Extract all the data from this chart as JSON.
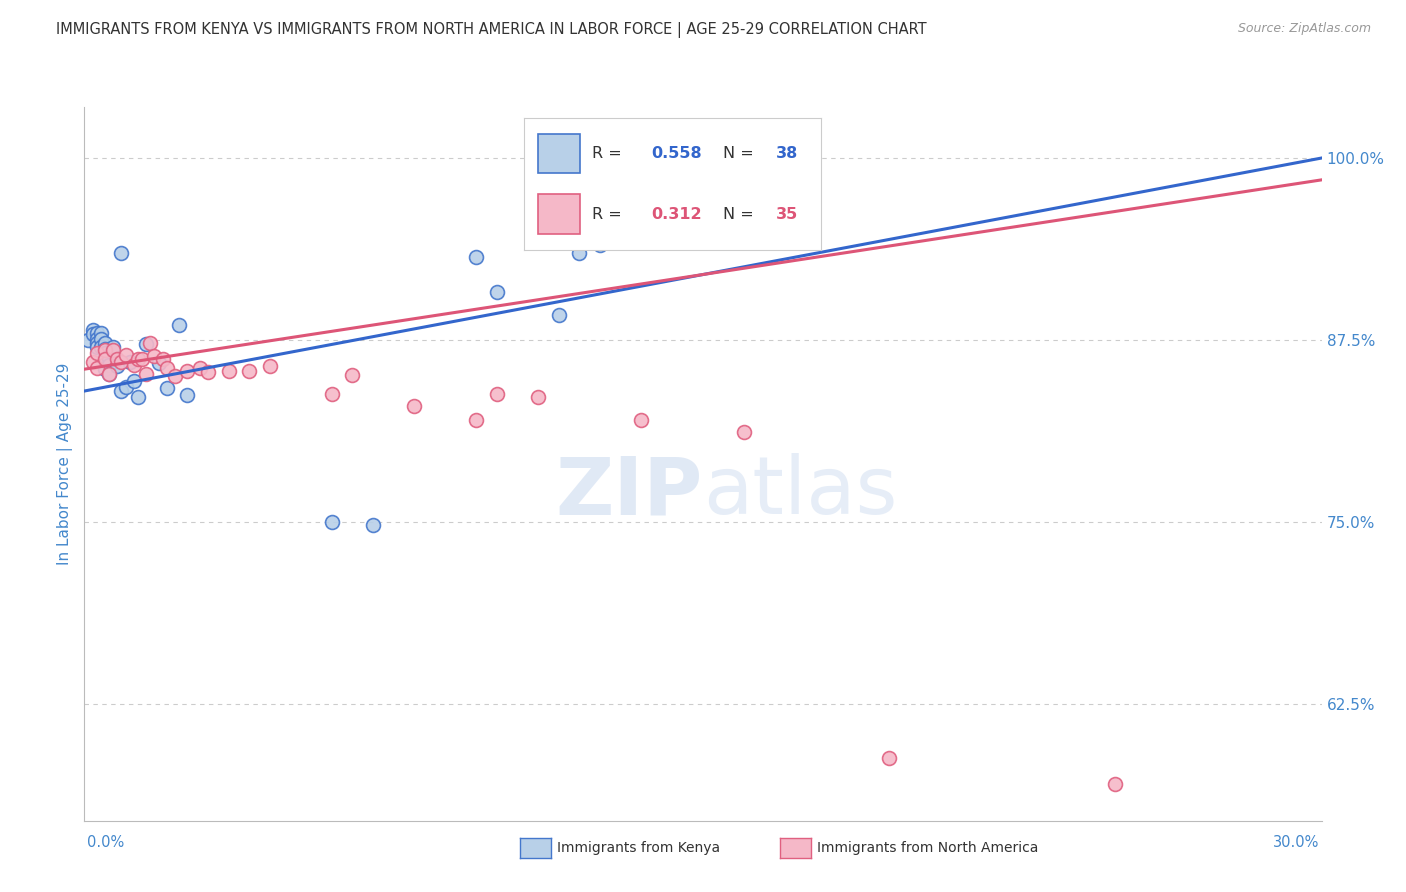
{
  "title": "IMMIGRANTS FROM KENYA VS IMMIGRANTS FROM NORTH AMERICA IN LABOR FORCE | AGE 25-29 CORRELATION CHART",
  "source": "Source: ZipAtlas.com",
  "ylabel": "In Labor Force | Age 25-29",
  "yticks": [
    1.0,
    0.875,
    0.75,
    0.625
  ],
  "ytick_labels": [
    "100.0%",
    "87.5%",
    "75.0%",
    "62.5%"
  ],
  "xlim": [
    0.0,
    0.3
  ],
  "ylim": [
    0.545,
    1.035
  ],
  "watermark_zip": "ZIP",
  "watermark_atlas": "atlas",
  "legend_r_kenya": "0.558",
  "legend_n_kenya": "38",
  "legend_r_na": "0.312",
  "legend_n_na": "35",
  "kenya_face_color": "#b8d0e8",
  "kenya_edge_color": "#4477cc",
  "na_face_color": "#f5b8c8",
  "na_edge_color": "#e06080",
  "kenya_line_color": "#3366cc",
  "na_line_color": "#dd5577",
  "kenya_scatter_x": [
    0.001,
    0.002,
    0.002,
    0.003,
    0.003,
    0.003,
    0.003,
    0.004,
    0.004,
    0.004,
    0.005,
    0.005,
    0.005,
    0.005,
    0.005,
    0.006,
    0.006,
    0.006,
    0.007,
    0.008,
    0.009,
    0.009,
    0.01,
    0.011,
    0.012,
    0.013,
    0.015,
    0.018,
    0.02,
    0.023,
    0.025,
    0.06,
    0.07,
    0.095,
    0.1,
    0.115,
    0.12,
    0.125
  ],
  "kenya_scatter_y": [
    0.875,
    0.882,
    0.879,
    0.88,
    0.876,
    0.873,
    0.87,
    0.88,
    0.876,
    0.87,
    0.873,
    0.869,
    0.866,
    0.86,
    0.855,
    0.863,
    0.858,
    0.852,
    0.87,
    0.857,
    0.935,
    0.84,
    0.843,
    0.86,
    0.847,
    0.836,
    0.872,
    0.859,
    0.842,
    0.885,
    0.837,
    0.75,
    0.748,
    0.932,
    0.908,
    0.892,
    0.935,
    0.94
  ],
  "na_scatter_x": [
    0.002,
    0.003,
    0.003,
    0.005,
    0.005,
    0.006,
    0.007,
    0.008,
    0.009,
    0.01,
    0.012,
    0.013,
    0.014,
    0.015,
    0.016,
    0.017,
    0.019,
    0.02,
    0.022,
    0.025,
    0.028,
    0.03,
    0.035,
    0.04,
    0.045,
    0.06,
    0.065,
    0.08,
    0.095,
    0.1,
    0.11,
    0.135,
    0.16,
    0.195,
    0.25
  ],
  "na_scatter_y": [
    0.86,
    0.866,
    0.856,
    0.868,
    0.862,
    0.852,
    0.868,
    0.862,
    0.86,
    0.865,
    0.858,
    0.862,
    0.862,
    0.852,
    0.873,
    0.864,
    0.862,
    0.856,
    0.85,
    0.854,
    0.856,
    0.853,
    0.854,
    0.854,
    0.857,
    0.838,
    0.851,
    0.83,
    0.82,
    0.838,
    0.836,
    0.82,
    0.812,
    0.588,
    0.57
  ],
  "kenya_line_x": [
    0.0,
    0.3
  ],
  "kenya_line_y": [
    0.84,
    1.0
  ],
  "na_line_x": [
    0.0,
    0.3
  ],
  "na_line_y": [
    0.855,
    0.985
  ],
  "background_color": "#ffffff",
  "grid_color": "#cccccc",
  "title_color": "#333333",
  "axis_label_color": "#4488cc",
  "tick_label_color": "#4488cc"
}
